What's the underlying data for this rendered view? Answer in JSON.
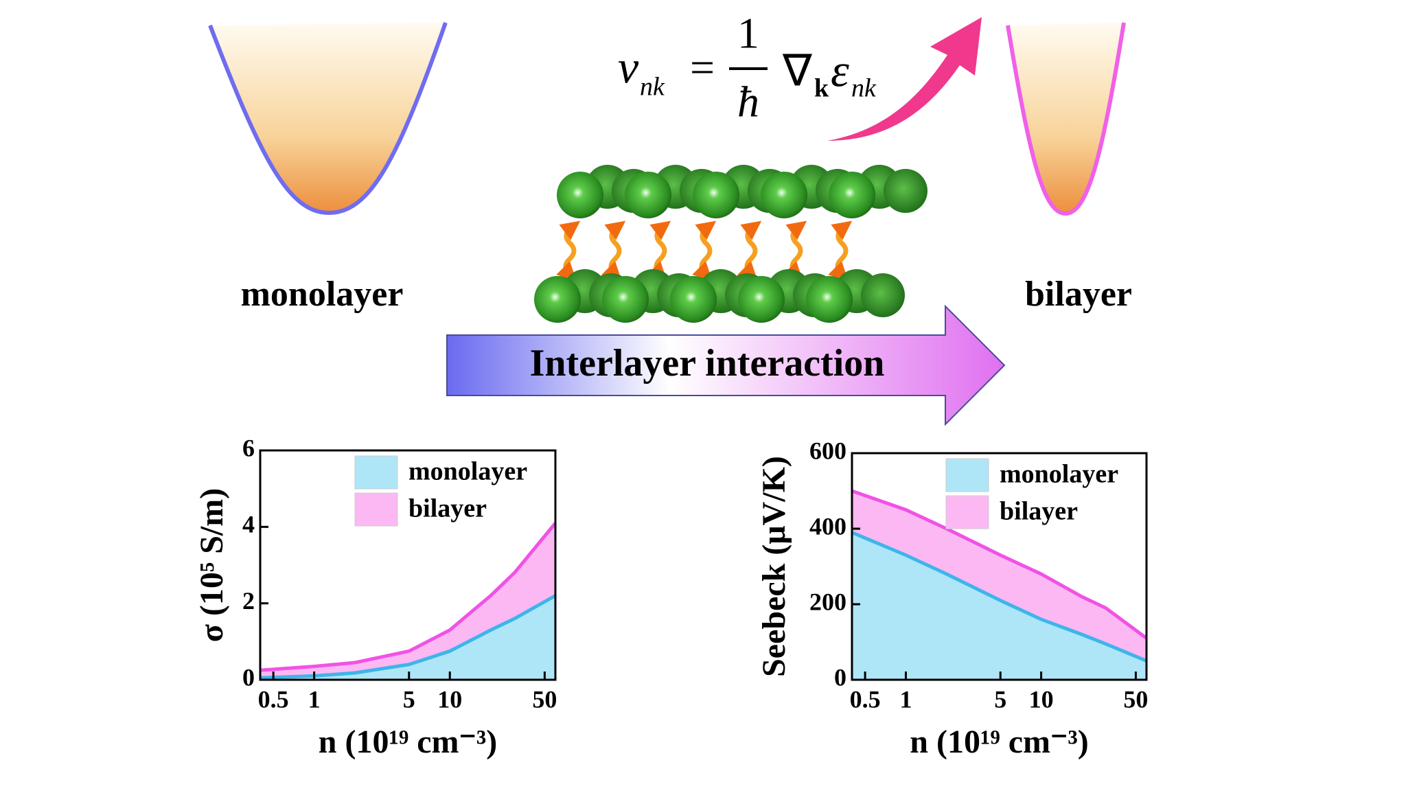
{
  "diagram": {
    "left_label": "monolayer",
    "right_label": "bilayer",
    "arrow_label": "Interlayer interaction",
    "equation": {
      "v": "v",
      "v_sub": "nk",
      "equals": "=",
      "numerator": "1",
      "denominator": "ħ",
      "nabla": "∇",
      "nabla_sub": "k",
      "epsilon": "ε",
      "epsilon_sub": "nk"
    }
  },
  "chart_data": [
    {
      "type": "area",
      "xlabel": "n (10¹⁹ cm⁻³)",
      "ylabel": "σ (10⁵ S/m)",
      "x": [
        0.4,
        1,
        2,
        5,
        10,
        20,
        30,
        60
      ],
      "xscale": "log",
      "xlim": [
        0.4,
        60
      ],
      "xticks": [
        0.5,
        1,
        5,
        10,
        50
      ],
      "ylim": [
        0,
        6
      ],
      "yticks": [
        0,
        2,
        4,
        6
      ],
      "legend": "upper right",
      "series": [
        {
          "name": "monolayer",
          "color": "#3db5ea",
          "fill": "#aee6f8",
          "values": [
            0.05,
            0.1,
            0.18,
            0.4,
            0.75,
            1.3,
            1.6,
            2.2
          ]
        },
        {
          "name": "bilayer",
          "color": "#f052e6",
          "fill": "#fbb8f3",
          "values": [
            0.25,
            0.35,
            0.45,
            0.75,
            1.3,
            2.2,
            2.8,
            4.1
          ]
        }
      ]
    },
    {
      "type": "area",
      "xlabel": "n (10¹⁹ cm⁻³)",
      "ylabel": "Seebeck (μV/K)",
      "x": [
        0.4,
        1,
        2,
        5,
        10,
        20,
        30,
        60
      ],
      "xscale": "log",
      "xlim": [
        0.4,
        60
      ],
      "xticks": [
        0.5,
        1,
        5,
        10,
        50
      ],
      "ylim": [
        0,
        600
      ],
      "yticks": [
        0,
        200,
        400,
        600
      ],
      "legend": "upper right",
      "series": [
        {
          "name": "monolayer",
          "color": "#3db5ea",
          "fill": "#aee6f8",
          "values": [
            390,
            330,
            280,
            210,
            160,
            120,
            95,
            50
          ]
        },
        {
          "name": "bilayer",
          "color": "#f052e6",
          "fill": "#fbb8f3",
          "values": [
            500,
            450,
            400,
            330,
            280,
            220,
            190,
            110
          ]
        }
      ]
    }
  ]
}
